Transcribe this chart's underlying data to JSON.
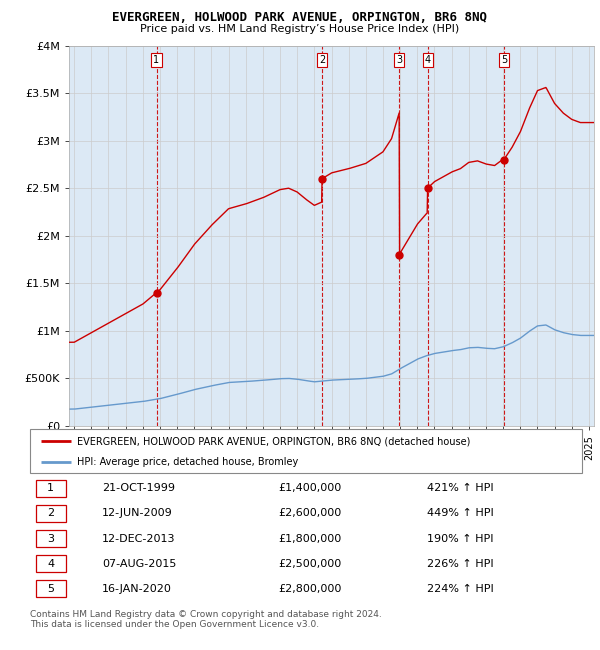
{
  "title": "EVERGREEN, HOLWOOD PARK AVENUE, ORPINGTON, BR6 8NQ",
  "subtitle": "Price paid vs. HM Land Registry’s House Price Index (HPI)",
  "ylim": [
    0,
    4000000
  ],
  "yticks": [
    0,
    500000,
    1000000,
    1500000,
    2000000,
    2500000,
    3000000,
    3500000,
    4000000
  ],
  "ytick_labels": [
    "£0",
    "£500K",
    "£1M",
    "£1.5M",
    "£2M",
    "£2.5M",
    "£3M",
    "£3.5M",
    "£4M"
  ],
  "xlim_start": 1994.7,
  "xlim_end": 2025.3,
  "sales": [
    {
      "year": 1999.8,
      "price": 1400000,
      "label": "1"
    },
    {
      "year": 2009.45,
      "price": 2600000,
      "label": "2"
    },
    {
      "year": 2013.95,
      "price": 1800000,
      "label": "3"
    },
    {
      "year": 2015.6,
      "price": 2500000,
      "label": "4"
    },
    {
      "year": 2020.05,
      "price": 2800000,
      "label": "5"
    }
  ],
  "sale_vline_color": "#cc0000",
  "sale_dot_color": "#cc0000",
  "hpi_line_color": "#6699cc",
  "price_line_color": "#cc0000",
  "grid_color": "#cccccc",
  "background_color": "#dce9f5",
  "plot_bg_color": "#dce9f5",
  "legend_label_price": "EVERGREEN, HOLWOOD PARK AVENUE, ORPINGTON, BR6 8NQ (detached house)",
  "legend_label_hpi": "HPI: Average price, detached house, Bromley",
  "table_rows": [
    [
      "1",
      "21-OCT-1999",
      "£1,400,000",
      "421% ↑ HPI"
    ],
    [
      "2",
      "12-JUN-2009",
      "£2,600,000",
      "449% ↑ HPI"
    ],
    [
      "3",
      "12-DEC-2013",
      "£1,800,000",
      "190% ↑ HPI"
    ],
    [
      "4",
      "07-AUG-2015",
      "£2,500,000",
      "226% ↑ HPI"
    ],
    [
      "5",
      "16-JAN-2020",
      "£2,800,000",
      "224% ↑ HPI"
    ]
  ],
  "footer": "Contains HM Land Registry data © Crown copyright and database right 2024.\nThis data is licensed under the Open Government Licence v3.0."
}
